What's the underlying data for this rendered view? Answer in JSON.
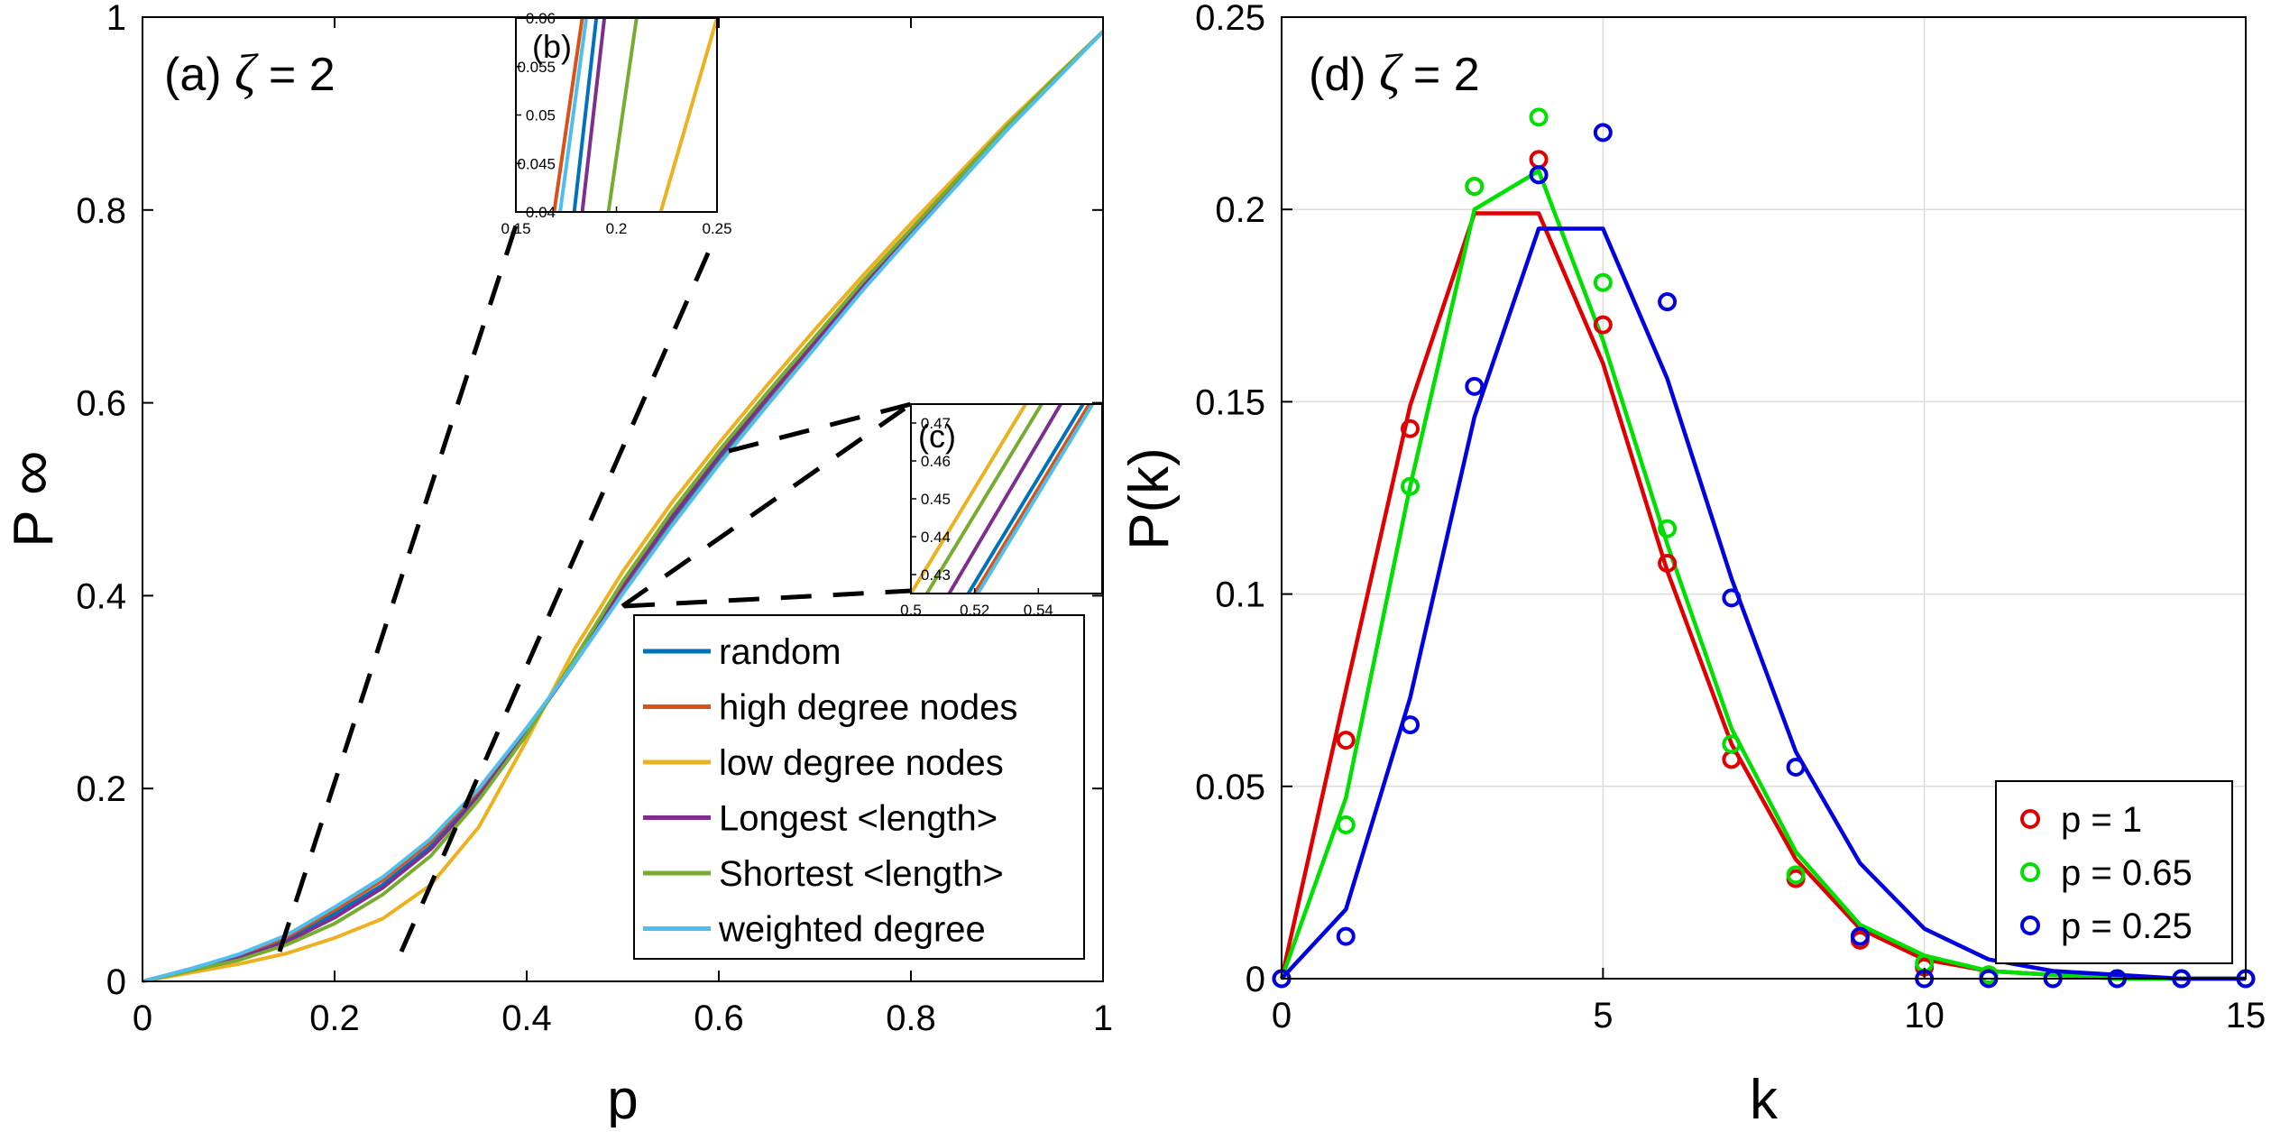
{
  "chart_data": [
    {
      "id": "panel-a",
      "type": "line",
      "panel_label": "(a)",
      "param_symbol": "ζ",
      "param_value": "= 2",
      "xlabel": "p",
      "ylabel_main": "P",
      "ylabel_sub": "∞",
      "xlim": [
        0,
        1
      ],
      "ylim": [
        0,
        1
      ],
      "xticks": [
        0,
        0.2,
        0.4,
        0.6,
        0.8,
        1
      ],
      "xtick_labels": [
        "0",
        "0.2",
        "0.4",
        "0.6",
        "0.8",
        "1"
      ],
      "yticks": [
        0,
        0.2,
        0.4,
        0.6,
        0.8,
        1
      ],
      "ytick_labels": [
        "0",
        "0.2",
        "0.4",
        "0.6",
        "0.8",
        "1"
      ],
      "legend_position": "bottom-right",
      "x": [
        0,
        0.05,
        0.1,
        0.15,
        0.2,
        0.25,
        0.3,
        0.35,
        0.4,
        0.45,
        0.5,
        0.55,
        0.6,
        0.65,
        0.7,
        0.75,
        0.8,
        0.85,
        0.9,
        0.95,
        1.0
      ],
      "series": [
        {
          "name": "random",
          "color": "#0072BD",
          "values": [
            0,
            0.012,
            0.025,
            0.043,
            0.07,
            0.1,
            0.14,
            0.195,
            0.26,
            0.33,
            0.405,
            0.475,
            0.54,
            0.6,
            0.66,
            0.72,
            0.775,
            0.83,
            0.885,
            0.935,
            0.985
          ]
        },
        {
          "name": "high degree nodes",
          "color": "#D95319",
          "values": [
            0,
            0.013,
            0.027,
            0.046,
            0.074,
            0.105,
            0.145,
            0.198,
            0.262,
            0.33,
            0.403,
            0.472,
            0.537,
            0.598,
            0.658,
            0.718,
            0.774,
            0.829,
            0.884,
            0.935,
            0.985
          ]
        },
        {
          "name": "low degree nodes",
          "color": "#EDB120",
          "values": [
            0,
            0.009,
            0.018,
            0.029,
            0.045,
            0.065,
            0.1,
            0.16,
            0.25,
            0.345,
            0.425,
            0.495,
            0.558,
            0.618,
            0.676,
            0.732,
            0.786,
            0.838,
            0.89,
            0.938,
            0.985
          ]
        },
        {
          "name": "Longest <length>",
          "color": "#7E2F8E",
          "values": [
            0,
            0.012,
            0.024,
            0.041,
            0.066,
            0.097,
            0.137,
            0.192,
            0.258,
            0.332,
            0.41,
            0.48,
            0.545,
            0.605,
            0.663,
            0.722,
            0.777,
            0.831,
            0.886,
            0.936,
            0.985
          ]
        },
        {
          "name": "Shortest <length>",
          "color": "#77AC30",
          "values": [
            0,
            0.011,
            0.022,
            0.038,
            0.06,
            0.09,
            0.13,
            0.188,
            0.256,
            0.335,
            0.415,
            0.486,
            0.55,
            0.61,
            0.668,
            0.726,
            0.78,
            0.834,
            0.887,
            0.937,
            0.985
          ]
        },
        {
          "name": "weighted degree",
          "color": "#4DBEEE",
          "values": [
            0,
            0.013,
            0.028,
            0.048,
            0.077,
            0.108,
            0.148,
            0.2,
            0.263,
            0.33,
            0.402,
            0.471,
            0.536,
            0.597,
            0.657,
            0.717,
            0.773,
            0.828,
            0.883,
            0.934,
            0.985
          ]
        }
      ],
      "insets": [
        {
          "id": "inset-b",
          "label": "(b)",
          "xlim": [
            0.15,
            0.25
          ],
          "ylim": [
            0.04,
            0.06
          ],
          "xticks": [
            0.15,
            0.2,
            0.25
          ],
          "xtick_labels": [
            "0.15",
            "0.2",
            "0.25"
          ],
          "yticks": [
            0.04,
            0.045,
            0.05,
            0.055,
            0.06
          ],
          "ytick_labels": [
            "0.04",
            "0.045",
            "0.05",
            "0.055",
            "0.06"
          ],
          "lines": [
            {
              "name": "high degree nodes",
              "color": "#D95319",
              "x0": 0.169,
              "x1": 0.183
            },
            {
              "name": "weighted degree",
              "color": "#4DBEEE",
              "x0": 0.172,
              "x1": 0.185
            },
            {
              "name": "random",
              "color": "#0072BD",
              "x0": 0.179,
              "x1": 0.19
            },
            {
              "name": "Longest <length>",
              "color": "#7E2F8E",
              "x0": 0.183,
              "x1": 0.194
            },
            {
              "name": "Shortest <length>",
              "color": "#77AC30",
              "x0": 0.196,
              "x1": 0.21
            },
            {
              "name": "low degree nodes",
              "color": "#EDB120",
              "x0": 0.222,
              "x1": 0.25
            }
          ]
        },
        {
          "id": "inset-c",
          "label": "(c)",
          "xlim": [
            0.5,
            0.56
          ],
          "ylim": [
            0.425,
            0.475
          ],
          "xticks": [
            0.5,
            0.52,
            0.54
          ],
          "xtick_labels": [
            "0.5",
            "0.52",
            "0.54"
          ],
          "yticks": [
            0.43,
            0.44,
            0.45,
            0.46,
            0.47
          ],
          "ytick_labels": [
            "0.43",
            "0.44",
            "0.45",
            "0.46",
            "0.47"
          ],
          "lines": [
            {
              "name": "low degree nodes",
              "color": "#EDB120",
              "x0": 0.5,
              "x1": 0.536
            },
            {
              "name": "Shortest <length>",
              "color": "#77AC30",
              "x0": 0.505,
              "x1": 0.541
            },
            {
              "name": "Longest <length>",
              "color": "#7E2F8E",
              "x0": 0.512,
              "x1": 0.547
            },
            {
              "name": "random",
              "color": "#0072BD",
              "x0": 0.518,
              "x1": 0.554
            },
            {
              "name": "high degree nodes",
              "color": "#D95319",
              "x0": 0.52,
              "x1": 0.556
            },
            {
              "name": "weighted degree",
              "color": "#4DBEEE",
              "x0": 0.521,
              "x1": 0.557
            }
          ]
        }
      ]
    },
    {
      "id": "panel-d",
      "type": "line",
      "panel_label": "(d)",
      "param_symbol": "ζ",
      "param_value": "= 2",
      "xlabel": "k",
      "ylabel": "P(k)",
      "xlim": [
        0,
        15
      ],
      "ylim": [
        0,
        0.25
      ],
      "grid": true,
      "xticks": [
        0,
        5,
        10,
        15
      ],
      "xtick_labels": [
        "0",
        "5",
        "10",
        "15"
      ],
      "yticks": [
        0,
        0.05,
        0.1,
        0.15,
        0.2,
        0.25
      ],
      "ytick_labels": [
        "0",
        "0.05",
        "0.1",
        "0.15",
        "0.2",
        "0.25"
      ],
      "legend_position": "bottom-right",
      "series": [
        {
          "name": "p = 1",
          "color": "#E00000",
          "line_x": [
            0,
            1,
            2,
            3,
            4,
            5,
            6,
            7,
            8,
            9,
            10,
            11,
            12,
            13,
            14,
            15
          ],
          "line_y": [
            0,
            0.075,
            0.149,
            0.199,
            0.199,
            0.16,
            0.106,
            0.061,
            0.031,
            0.013,
            0.005,
            0.002,
            0.001,
            0,
            0,
            0
          ],
          "marker_x": [
            0,
            1,
            2,
            3,
            4,
            5,
            6,
            7,
            8,
            9,
            10,
            11,
            12,
            13,
            14,
            15
          ],
          "marker_y": [
            0,
            0.062,
            0.143,
            0.206,
            0.213,
            0.17,
            0.108,
            0.057,
            0.026,
            0.01,
            0.003,
            0.001,
            0,
            0,
            0,
            0
          ]
        },
        {
          "name": "p = 0.65",
          "color": "#00E000",
          "line_x": [
            0,
            1,
            2,
            3,
            4,
            5,
            6,
            7,
            8,
            9,
            10,
            11,
            12,
            13,
            14,
            15
          ],
          "line_y": [
            0,
            0.047,
            0.128,
            0.2,
            0.21,
            0.166,
            0.113,
            0.065,
            0.033,
            0.014,
            0.006,
            0.002,
            0.001,
            0,
            0,
            0
          ],
          "marker_x": [
            0,
            1,
            2,
            3,
            4,
            5,
            6,
            7,
            8,
            9,
            10,
            11,
            12,
            13,
            14,
            15
          ],
          "marker_y": [
            0,
            0.04,
            0.128,
            0.206,
            0.224,
            0.181,
            0.117,
            0.061,
            0.027,
            0.011,
            0.004,
            0.001,
            0,
            0,
            0,
            0
          ]
        },
        {
          "name": "p = 0.25",
          "color": "#0000E0",
          "line_x": [
            0,
            1,
            2,
            3,
            4,
            5,
            6,
            7,
            8,
            9,
            10,
            11,
            12,
            13,
            14,
            15
          ],
          "line_y": [
            0,
            0.018,
            0.073,
            0.146,
            0.195,
            0.195,
            0.156,
            0.104,
            0.059,
            0.03,
            0.013,
            0.005,
            0.002,
            0.001,
            0,
            0
          ],
          "marker_x": [
            0,
            1,
            2,
            3,
            4,
            5,
            6,
            7,
            8,
            9,
            10,
            11,
            12,
            13,
            14,
            15
          ],
          "marker_y": [
            0,
            0.011,
            0.066,
            0.154,
            0.209,
            0.22,
            0.176,
            0.099,
            0.055,
            0.011,
            0,
            0,
            0,
            0,
            0,
            0
          ]
        }
      ]
    }
  ]
}
